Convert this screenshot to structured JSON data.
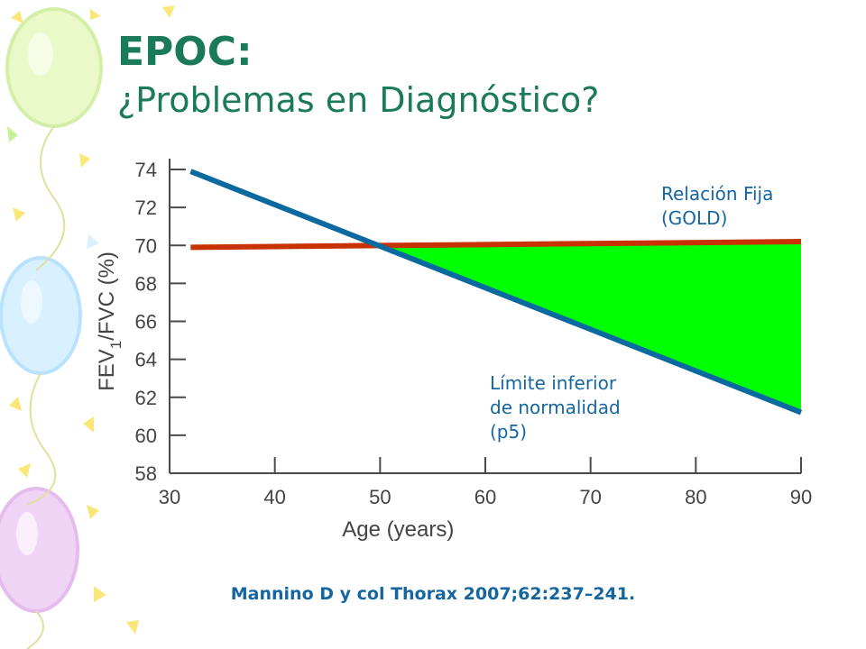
{
  "slide": {
    "title": "EPOC:",
    "subtitle": "¿Problemas en Diagnóstico?",
    "citation": "Mannino D y col Thorax 2007;62:237–241."
  },
  "colors": {
    "title": "#1a7a5a",
    "gold_line": "#c83200",
    "lln_line": "#0a6aa0",
    "gap_fill": "#00ff00",
    "annotation": "#1566a0"
  },
  "chart_data": {
    "type": "line",
    "xlabel": "Age (years)",
    "ylabel": "FEV1/FVC (%)",
    "ylabel_parts": {
      "pre": "FEV",
      "sub": "1",
      "post": "/FVC (%)"
    },
    "xlim": [
      30,
      90
    ],
    "ylim": [
      58,
      74
    ],
    "x_ticks": [
      30,
      40,
      50,
      60,
      70,
      80,
      90
    ],
    "y_ticks": [
      58,
      60,
      62,
      64,
      66,
      68,
      70,
      72,
      74
    ],
    "grid": false,
    "series": [
      {
        "name": "Relación Fija (GOLD)",
        "color": "#c83200",
        "x": [
          32,
          90
        ],
        "y": [
          69.9,
          70.2
        ]
      },
      {
        "name": "Límite inferior de normalidad (p5)",
        "color": "#0a6aa0",
        "x": [
          32,
          90
        ],
        "y": [
          73.9,
          61.2
        ]
      }
    ],
    "shaded_region": {
      "between": [
        "Relación Fija (GOLD)",
        "Límite inferior de normalidad (p5)"
      ],
      "x_from": 50,
      "x_to": 90,
      "color": "#00ff00"
    },
    "annotations": [
      {
        "series": "Relación Fija (GOLD)",
        "lines": [
          "Relación Fija",
          "(GOLD)"
        ]
      },
      {
        "series": "Límite inferior de normalidad (p5)",
        "lines": [
          "Límite inferior",
          "de normalidad",
          "(p5)"
        ]
      }
    ]
  }
}
